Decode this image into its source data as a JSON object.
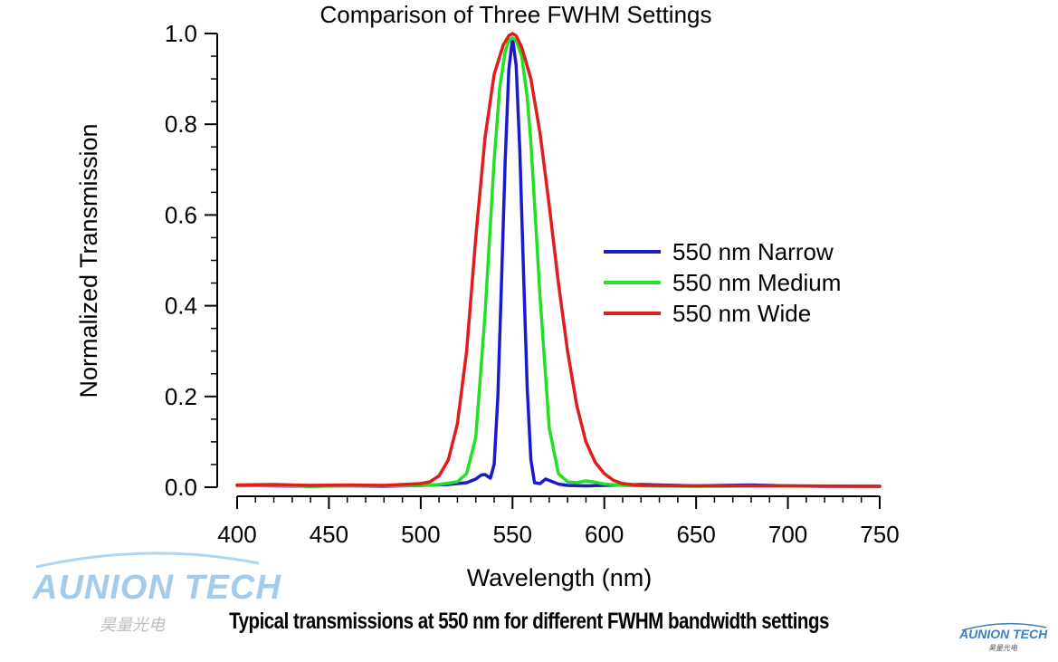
{
  "chart_data": {
    "type": "line",
    "title": "Comparison of Three FWHM Settings",
    "xlabel": "Wavelength (nm)",
    "ylabel": "Normalized Transmission",
    "xlim": [
      400,
      750
    ],
    "ylim": [
      0,
      1.0
    ],
    "xticks": [
      400,
      450,
      500,
      550,
      600,
      650,
      700,
      750
    ],
    "yticks": [
      "0.0",
      "0.2",
      "0.4",
      "0.6",
      "0.8",
      "1.0"
    ],
    "grid": false,
    "legend_position": "right",
    "series": [
      {
        "name": "550 nm Narrow",
        "color": "#1a1acc",
        "x": [
          400,
          420,
          440,
          460,
          480,
          500,
          515,
          525,
          530,
          533,
          535,
          538,
          540,
          542,
          544,
          546,
          548,
          550,
          552,
          554,
          556,
          558,
          560,
          562,
          565,
          568,
          570,
          575,
          580,
          590,
          600,
          610,
          620,
          650,
          680,
          700,
          720,
          750
        ],
        "y": [
          0.004,
          0.003,
          0.002,
          0.003,
          0.002,
          0.004,
          0.006,
          0.01,
          0.018,
          0.027,
          0.028,
          0.02,
          0.05,
          0.2,
          0.45,
          0.72,
          0.92,
          0.99,
          0.93,
          0.74,
          0.47,
          0.22,
          0.06,
          0.01,
          0.008,
          0.018,
          0.015,
          0.007,
          0.004,
          0.003,
          0.004,
          0.005,
          0.006,
          0.003,
          0.005,
          0.003,
          0.002,
          0.002
        ]
      },
      {
        "name": "550 nm Medium",
        "color": "#22e022",
        "x": [
          400,
          420,
          440,
          460,
          480,
          500,
          510,
          520,
          525,
          530,
          535,
          540,
          543,
          546,
          548,
          550,
          552,
          555,
          558,
          560,
          565,
          570,
          575,
          580,
          585,
          590,
          595,
          600,
          610,
          620,
          650,
          700,
          750
        ],
        "y": [
          0.003,
          0.004,
          0.002,
          0.003,
          0.003,
          0.004,
          0.006,
          0.012,
          0.03,
          0.11,
          0.38,
          0.72,
          0.88,
          0.96,
          0.985,
          0.99,
          0.985,
          0.95,
          0.86,
          0.76,
          0.42,
          0.13,
          0.03,
          0.012,
          0.01,
          0.014,
          0.011,
          0.007,
          0.004,
          0.003,
          0.002,
          0.003,
          0.002
        ]
      },
      {
        "name": "550 nm Wide",
        "color": "#e01c1c",
        "x": [
          400,
          420,
          440,
          460,
          480,
          500,
          505,
          510,
          515,
          520,
          525,
          530,
          535,
          540,
          545,
          548,
          550,
          552,
          555,
          560,
          565,
          570,
          575,
          580,
          585,
          590,
          595,
          600,
          605,
          610,
          620,
          650,
          700,
          750
        ],
        "y": [
          0.005,
          0.006,
          0.004,
          0.005,
          0.004,
          0.008,
          0.012,
          0.025,
          0.06,
          0.14,
          0.3,
          0.55,
          0.77,
          0.91,
          0.975,
          0.995,
          1.0,
          0.995,
          0.97,
          0.9,
          0.78,
          0.62,
          0.45,
          0.3,
          0.18,
          0.1,
          0.055,
          0.03,
          0.015,
          0.008,
          0.004,
          0.003,
          0.003,
          0.002
        ]
      }
    ]
  },
  "caption": "Typical transmissions at 550 nm for different  FWHM bandwidth settings",
  "logo": {
    "brand": "AUNION TECH",
    "chinese": "昊量光电",
    "color": "#5aa2d8"
  }
}
